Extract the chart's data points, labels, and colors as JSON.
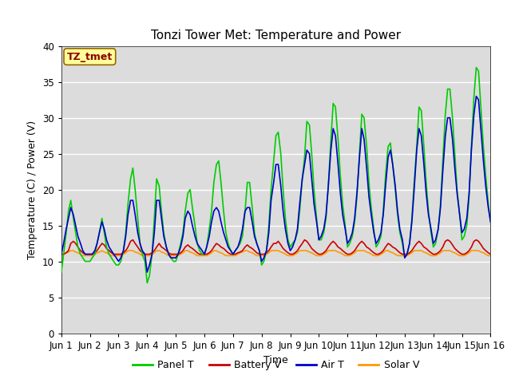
{
  "title": "Tonzi Tower Met: Temperature and Power",
  "xlabel": "Time",
  "ylabel": "Temperature (C) / Power (V)",
  "ylim": [
    0,
    40
  ],
  "yticks": [
    0,
    5,
    10,
    15,
    20,
    25,
    30,
    35,
    40
  ],
  "xlim": [
    0,
    15
  ],
  "xtick_labels": [
    "Jun 1",
    "Jun 2",
    "Jun 3",
    "Jun 4",
    "Jun 5",
    "Jun 6",
    "Jun 7",
    "Jun 8",
    "Jun 9",
    "Jun 10",
    "Jun 11",
    "Jun 12",
    "Jun 13",
    "Jun 14",
    "Jun 15",
    "Jun 16"
  ],
  "xtick_positions": [
    0,
    1,
    2,
    3,
    4,
    5,
    6,
    7,
    8,
    9,
    10,
    11,
    12,
    13,
    14,
    15
  ],
  "annotation_text": "TZ_tmet",
  "annotation_color": "#8B0000",
  "annotation_bg": "#FFFF99",
  "bg_color": "#DCDCDC",
  "legend_entries": [
    "Panel T",
    "Battery V",
    "Air T",
    "Solar V"
  ],
  "legend_colors": [
    "#00CC00",
    "#CC0000",
    "#0000CC",
    "#FF9900"
  ],
  "colors": {
    "panel_t": "#00CC00",
    "battery_v": "#CC0000",
    "air_t": "#0000CC",
    "solar_v": "#FF9900"
  },
  "panel_t_x": [
    0.0,
    0.08,
    0.17,
    0.25,
    0.33,
    0.42,
    0.5,
    0.58,
    0.67,
    0.75,
    0.83,
    0.92,
    1.0,
    1.08,
    1.17,
    1.25,
    1.33,
    1.42,
    1.5,
    1.58,
    1.67,
    1.75,
    1.83,
    1.92,
    2.0,
    2.08,
    2.17,
    2.25,
    2.33,
    2.42,
    2.5,
    2.58,
    2.67,
    2.75,
    2.83,
    2.92,
    3.0,
    3.08,
    3.17,
    3.25,
    3.33,
    3.42,
    3.5,
    3.58,
    3.67,
    3.75,
    3.83,
    3.92,
    4.0,
    4.08,
    4.17,
    4.25,
    4.33,
    4.42,
    4.5,
    4.58,
    4.67,
    4.75,
    4.83,
    4.92,
    5.0,
    5.08,
    5.17,
    5.25,
    5.33,
    5.42,
    5.5,
    5.58,
    5.67,
    5.75,
    5.83,
    5.92,
    6.0,
    6.08,
    6.17,
    6.25,
    6.33,
    6.42,
    6.5,
    6.58,
    6.67,
    6.75,
    6.83,
    6.92,
    7.0,
    7.08,
    7.17,
    7.25,
    7.33,
    7.42,
    7.5,
    7.58,
    7.67,
    7.75,
    7.83,
    7.92,
    8.0,
    8.08,
    8.17,
    8.25,
    8.33,
    8.42,
    8.5,
    8.58,
    8.67,
    8.75,
    8.83,
    8.92,
    9.0,
    9.08,
    9.17,
    9.25,
    9.33,
    9.42,
    9.5,
    9.58,
    9.67,
    9.75,
    9.83,
    9.92,
    10.0,
    10.08,
    10.17,
    10.25,
    10.33,
    10.42,
    10.5,
    10.58,
    10.67,
    10.75,
    10.83,
    10.92,
    11.0,
    11.08,
    11.17,
    11.25,
    11.33,
    11.42,
    11.5,
    11.58,
    11.67,
    11.75,
    11.83,
    11.92,
    12.0,
    12.08,
    12.17,
    12.25,
    12.33,
    12.42,
    12.5,
    12.58,
    12.67,
    12.75,
    12.83,
    12.92,
    13.0,
    13.08,
    13.17,
    13.25,
    13.33,
    13.42,
    13.5,
    13.58,
    13.67,
    13.75,
    13.83,
    13.92,
    14.0,
    14.08,
    14.17,
    14.25,
    14.33,
    14.42,
    14.5,
    14.58,
    14.67,
    14.75,
    14.83,
    14.92,
    15.0
  ],
  "panel_t_y": [
    8.5,
    11.0,
    14.0,
    17.0,
    18.5,
    16.0,
    14.0,
    12.0,
    11.0,
    10.5,
    10.0,
    10.0,
    10.0,
    10.5,
    11.0,
    12.5,
    14.0,
    16.0,
    14.0,
    12.0,
    11.0,
    10.5,
    10.0,
    9.5,
    9.5,
    10.0,
    11.5,
    14.0,
    18.0,
    21.5,
    23.0,
    20.0,
    16.0,
    12.5,
    11.0,
    10.0,
    7.0,
    8.0,
    11.0,
    16.0,
    21.5,
    20.5,
    17.0,
    14.0,
    12.0,
    11.0,
    10.5,
    10.0,
    10.0,
    11.0,
    12.5,
    14.0,
    17.0,
    19.5,
    20.0,
    17.5,
    15.0,
    12.5,
    11.5,
    11.0,
    11.0,
    12.0,
    14.5,
    17.0,
    21.0,
    23.5,
    24.0,
    21.0,
    17.0,
    14.0,
    12.5,
    11.5,
    11.0,
    11.5,
    12.0,
    12.5,
    13.5,
    17.0,
    21.0,
    21.0,
    17.5,
    14.0,
    12.5,
    11.5,
    9.5,
    10.0,
    11.5,
    15.0,
    20.0,
    24.0,
    27.5,
    28.0,
    25.0,
    20.0,
    16.0,
    13.0,
    12.0,
    12.5,
    13.0,
    14.0,
    17.0,
    21.5,
    24.5,
    29.5,
    29.0,
    25.0,
    20.0,
    16.0,
    13.0,
    13.0,
    14.0,
    16.0,
    20.5,
    27.0,
    32.0,
    31.5,
    27.0,
    22.0,
    18.0,
    15.0,
    12.0,
    12.5,
    13.5,
    15.5,
    19.0,
    25.0,
    30.5,
    30.0,
    26.0,
    21.0,
    17.5,
    14.5,
    12.0,
    12.5,
    13.5,
    17.0,
    22.0,
    26.0,
    26.5,
    23.5,
    20.0,
    16.5,
    14.0,
    12.5,
    10.5,
    11.0,
    12.5,
    16.0,
    21.0,
    26.0,
    31.5,
    31.0,
    26.0,
    21.0,
    17.0,
    14.0,
    12.0,
    12.5,
    14.5,
    18.0,
    24.0,
    30.5,
    34.0,
    34.0,
    30.0,
    25.0,
    20.0,
    16.5,
    13.0,
    13.5,
    15.0,
    19.0,
    26.0,
    33.0,
    37.0,
    36.5,
    31.0,
    26.0,
    22.0,
    18.0,
    15.5
  ],
  "battery_v_y": [
    11.0,
    11.0,
    11.2,
    11.5,
    12.5,
    12.8,
    12.5,
    12.0,
    11.5,
    11.2,
    11.0,
    11.0,
    11.0,
    11.0,
    11.2,
    11.5,
    12.0,
    12.5,
    12.3,
    11.8,
    11.5,
    11.2,
    11.0,
    11.0,
    11.0,
    11.0,
    11.2,
    11.5,
    12.0,
    12.8,
    13.0,
    12.5,
    12.0,
    11.5,
    11.2,
    11.0,
    11.0,
    11.0,
    11.2,
    11.5,
    12.0,
    12.5,
    12.0,
    11.8,
    11.5,
    11.2,
    11.0,
    11.0,
    11.0,
    11.0,
    11.2,
    11.5,
    12.0,
    12.3,
    12.0,
    11.8,
    11.5,
    11.2,
    11.0,
    11.0,
    11.0,
    11.0,
    11.2,
    11.5,
    12.0,
    12.5,
    12.3,
    12.0,
    11.8,
    11.5,
    11.2,
    11.0,
    11.0,
    11.0,
    11.2,
    11.3,
    11.5,
    12.0,
    12.3,
    12.0,
    11.8,
    11.5,
    11.2,
    11.0,
    11.0,
    11.0,
    11.2,
    11.5,
    12.0,
    12.5,
    12.5,
    12.8,
    12.3,
    11.8,
    11.5,
    11.2,
    11.0,
    11.0,
    11.2,
    11.5,
    12.0,
    12.5,
    13.0,
    12.8,
    12.3,
    11.8,
    11.5,
    11.2,
    11.0,
    11.0,
    11.2,
    11.5,
    12.0,
    12.5,
    12.8,
    12.5,
    12.0,
    11.8,
    11.5,
    11.2,
    11.0,
    11.0,
    11.2,
    11.5,
    12.0,
    12.5,
    12.8,
    12.5,
    12.0,
    11.8,
    11.5,
    11.2,
    11.0,
    11.0,
    11.2,
    11.5,
    12.0,
    12.5,
    12.3,
    12.0,
    11.8,
    11.5,
    11.2,
    11.0,
    11.0,
    11.0,
    11.2,
    11.5,
    12.0,
    12.5,
    12.8,
    12.5,
    12.0,
    11.8,
    11.5,
    11.2,
    11.0,
    11.0,
    11.2,
    11.5,
    12.0,
    12.8,
    13.0,
    12.8,
    12.3,
    11.8,
    11.5,
    11.2,
    11.0,
    11.0,
    11.2,
    11.5,
    12.0,
    12.8,
    13.0,
    12.8,
    12.3,
    11.8,
    11.5,
    11.2,
    11.0
  ],
  "air_t_y": [
    11.0,
    12.5,
    14.5,
    16.0,
    17.5,
    16.5,
    15.0,
    13.5,
    12.5,
    11.5,
    11.0,
    11.0,
    11.0,
    11.0,
    11.5,
    12.5,
    14.0,
    15.5,
    14.5,
    13.0,
    12.0,
    11.5,
    11.0,
    10.5,
    10.0,
    10.5,
    11.5,
    13.5,
    16.5,
    18.5,
    18.5,
    16.5,
    14.0,
    12.5,
    11.5,
    11.0,
    8.5,
    9.5,
    11.0,
    14.0,
    18.5,
    18.5,
    16.0,
    13.5,
    12.0,
    11.0,
    10.5,
    10.5,
    10.5,
    11.0,
    12.0,
    13.5,
    16.0,
    17.0,
    16.5,
    15.0,
    13.5,
    12.5,
    12.0,
    11.5,
    11.0,
    12.0,
    13.5,
    15.5,
    17.0,
    17.5,
    17.0,
    15.5,
    14.0,
    13.0,
    12.0,
    11.5,
    11.0,
    11.5,
    12.0,
    13.0,
    14.5,
    17.0,
    17.5,
    17.5,
    15.5,
    13.5,
    12.5,
    11.5,
    10.0,
    10.5,
    11.5,
    14.0,
    18.5,
    21.0,
    23.5,
    23.5,
    20.5,
    17.0,
    14.5,
    12.5,
    11.5,
    12.0,
    13.0,
    14.5,
    18.0,
    21.5,
    23.5,
    25.5,
    25.0,
    21.5,
    18.0,
    15.5,
    13.0,
    13.5,
    14.5,
    16.5,
    20.5,
    25.5,
    28.5,
    27.5,
    23.5,
    19.5,
    16.5,
    14.5,
    12.5,
    13.0,
    14.0,
    16.0,
    19.5,
    24.5,
    28.5,
    27.0,
    23.0,
    19.0,
    16.5,
    14.0,
    12.5,
    13.0,
    14.0,
    16.5,
    20.5,
    24.5,
    25.5,
    23.5,
    20.5,
    17.0,
    14.5,
    13.0,
    10.5,
    11.0,
    12.5,
    15.5,
    20.0,
    25.5,
    28.5,
    27.5,
    23.5,
    19.5,
    16.5,
    14.5,
    12.5,
    13.0,
    14.5,
    17.5,
    22.5,
    27.5,
    30.0,
    30.0,
    27.0,
    23.0,
    19.5,
    16.5,
    14.0,
    14.5,
    16.0,
    19.5,
    25.5,
    30.5,
    33.0,
    32.5,
    28.0,
    24.0,
    20.5,
    17.5,
    15.5
  ],
  "solar_v_y": [
    10.8,
    11.0,
    11.2,
    11.3,
    11.5,
    11.5,
    11.3,
    11.2,
    11.0,
    10.8,
    10.8,
    10.8,
    10.8,
    10.8,
    11.0,
    11.2,
    11.3,
    11.5,
    11.3,
    11.2,
    11.0,
    10.8,
    10.8,
    10.8,
    10.8,
    10.8,
    11.0,
    11.2,
    11.5,
    11.5,
    11.5,
    11.3,
    11.2,
    11.0,
    10.8,
    10.8,
    10.8,
    10.8,
    11.0,
    11.2,
    11.5,
    11.5,
    11.3,
    11.2,
    11.0,
    10.8,
    10.8,
    10.8,
    10.8,
    10.8,
    11.0,
    11.2,
    11.5,
    11.5,
    11.3,
    11.2,
    11.0,
    10.8,
    10.8,
    10.8,
    10.8,
    10.8,
    11.0,
    11.2,
    11.5,
    11.5,
    11.3,
    11.2,
    11.0,
    10.8,
    10.8,
    10.8,
    10.8,
    10.8,
    11.0,
    11.2,
    11.3,
    11.5,
    11.5,
    11.3,
    11.2,
    11.0,
    10.8,
    10.8,
    10.8,
    10.8,
    11.0,
    11.2,
    11.5,
    11.5,
    11.5,
    11.5,
    11.3,
    11.2,
    11.0,
    10.8,
    10.8,
    10.8,
    11.0,
    11.2,
    11.5,
    11.5,
    11.5,
    11.5,
    11.3,
    11.2,
    11.0,
    10.8,
    10.8,
    10.8,
    11.0,
    11.2,
    11.5,
    11.5,
    11.5,
    11.5,
    11.3,
    11.2,
    11.0,
    10.8,
    10.8,
    10.8,
    11.0,
    11.2,
    11.5,
    11.5,
    11.5,
    11.5,
    11.3,
    11.2,
    11.0,
    10.8,
    10.8,
    10.8,
    11.0,
    11.2,
    11.5,
    11.5,
    11.3,
    11.2,
    11.0,
    10.8,
    10.8,
    10.8,
    10.8,
    10.8,
    11.0,
    11.2,
    11.5,
    11.5,
    11.5,
    11.5,
    11.3,
    11.2,
    11.0,
    10.8,
    10.8,
    10.8,
    11.0,
    11.2,
    11.5,
    11.5,
    11.5,
    11.5,
    11.3,
    11.2,
    11.0,
    10.8,
    10.8,
    10.8,
    11.0,
    11.2,
    11.5,
    11.5,
    11.5,
    11.5,
    11.3,
    11.2,
    11.0,
    10.8,
    10.8
  ]
}
